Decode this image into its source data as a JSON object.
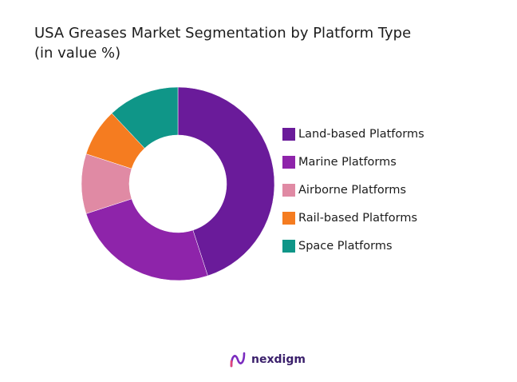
{
  "chart_data": {
    "type": "pie",
    "style": "donut",
    "title_lines": [
      "USA Greases Market Segmentation by Platform Type",
      "(in value %)"
    ],
    "categories": [
      "Land-based Platforms",
      "Marine Platforms",
      "Airborne Platforms",
      "Rail-based Platforms",
      "Space Platforms"
    ],
    "values": [
      45,
      25,
      10,
      8,
      12
    ],
    "colors": [
      "#6a1b9a",
      "#8e24aa",
      "#e08aa4",
      "#f57c20",
      "#0f9688"
    ],
    "legend_position": "right"
  },
  "brand": {
    "name": "nexdigm",
    "icon": "nexdigm-logo-icon"
  }
}
